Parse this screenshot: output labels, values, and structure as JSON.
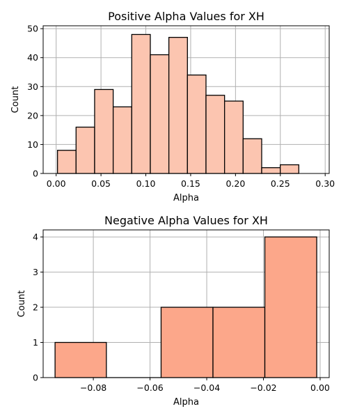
{
  "chart_data": [
    {
      "type": "bar",
      "title": "Positive Alpha Values for XH",
      "xlabel": "Alpha",
      "ylabel": "Count",
      "xlim": [
        -0.0145,
        0.3045
      ],
      "ylim": [
        0,
        51
      ],
      "xticks": [
        0.0,
        0.05,
        0.1,
        0.15,
        0.2,
        0.25,
        0.3
      ],
      "xtick_labels": [
        "0.00",
        "0.05",
        "0.10",
        "0.15",
        "0.20",
        "0.25",
        "0.30"
      ],
      "yticks": [
        0,
        10,
        20,
        30,
        40,
        50
      ],
      "ytick_labels": [
        "0",
        "10",
        "20",
        "30",
        "40",
        "50"
      ],
      "grid": true,
      "bar_color": "#fcc5b0",
      "bins": [
        {
          "x0": 0.0015,
          "x1": 0.0222,
          "count": 8
        },
        {
          "x0": 0.0222,
          "x1": 0.0429,
          "count": 16
        },
        {
          "x0": 0.0429,
          "x1": 0.0636,
          "count": 29
        },
        {
          "x0": 0.0636,
          "x1": 0.0843,
          "count": 23
        },
        {
          "x0": 0.0843,
          "x1": 0.105,
          "count": 48
        },
        {
          "x0": 0.105,
          "x1": 0.1257,
          "count": 41
        },
        {
          "x0": 0.1257,
          "x1": 0.1464,
          "count": 47
        },
        {
          "x0": 0.1464,
          "x1": 0.1671,
          "count": 34
        },
        {
          "x0": 0.1671,
          "x1": 0.1878,
          "count": 27
        },
        {
          "x0": 0.1878,
          "x1": 0.2085,
          "count": 25
        },
        {
          "x0": 0.2085,
          "x1": 0.2292,
          "count": 12
        },
        {
          "x0": 0.2292,
          "x1": 0.2499,
          "count": 2
        },
        {
          "x0": 0.2499,
          "x1": 0.2706,
          "count": 3
        }
      ]
    },
    {
      "type": "bar",
      "title": "Negative Alpha Values for XH",
      "xlabel": "Alpha",
      "ylabel": "Count",
      "xlim": [
        -0.0977,
        0.0032
      ],
      "ylim": [
        0,
        4.2
      ],
      "xticks": [
        -0.08,
        -0.06,
        -0.04,
        -0.02,
        0.0
      ],
      "xtick_labels": [
        "−0.08",
        "−0.06",
        "−0.04",
        "−0.02",
        "0.00"
      ],
      "yticks": [
        0,
        1,
        2,
        3,
        4
      ],
      "ytick_labels": [
        "0",
        "1",
        "2",
        "3",
        "4"
      ],
      "grid": true,
      "bar_color": "#fca78a",
      "bins": [
        {
          "x0": -0.0935,
          "x1": -0.0754,
          "count": 1
        },
        {
          "x0": -0.0754,
          "x1": -0.0561,
          "count": 0
        },
        {
          "x0": -0.0561,
          "x1": -0.0378,
          "count": 2
        },
        {
          "x0": -0.0378,
          "x1": -0.0195,
          "count": 2
        },
        {
          "x0": -0.0195,
          "x1": -0.0012,
          "count": 4
        }
      ]
    }
  ]
}
